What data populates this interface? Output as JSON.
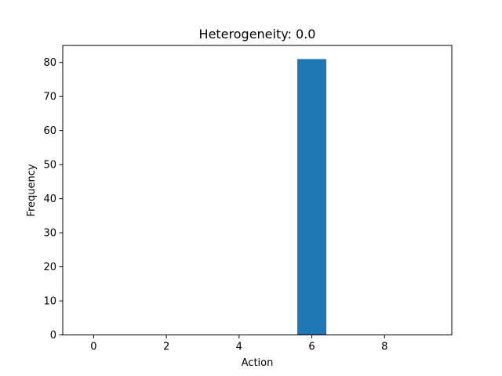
{
  "chart_data": {
    "type": "bar",
    "title": "Heterogeneity: 0.0",
    "xlabel": "Action",
    "ylabel": "Frequency",
    "x": [
      0,
      1,
      2,
      3,
      4,
      5,
      6,
      7,
      8,
      9
    ],
    "values": [
      0,
      0,
      0,
      0,
      0,
      0,
      81,
      0,
      0,
      0
    ],
    "bar_width": 0.8,
    "xlim": [
      -0.85,
      9.85
    ],
    "ylim": [
      0,
      85
    ],
    "xticks": [
      0,
      2,
      4,
      6,
      8
    ],
    "yticks": [
      0,
      10,
      20,
      30,
      40,
      50,
      60,
      70,
      80
    ],
    "bar_color": "#1f77b4",
    "grid": false,
    "legend": false
  }
}
